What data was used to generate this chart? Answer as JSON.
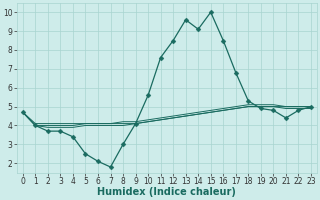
{
  "xlabel": "Humidex (Indice chaleur)",
  "x": [
    0,
    1,
    2,
    3,
    4,
    5,
    6,
    7,
    8,
    9,
    10,
    11,
    12,
    13,
    14,
    15,
    16,
    17,
    18,
    19,
    20,
    21,
    22,
    23
  ],
  "main_line": [
    4.7,
    4.0,
    3.7,
    3.7,
    3.4,
    2.5,
    2.1,
    1.8,
    3.0,
    4.1,
    5.6,
    7.6,
    8.5,
    9.6,
    9.1,
    10.0,
    8.5,
    6.8,
    5.3,
    4.9,
    4.8,
    4.4,
    4.8,
    5.0
  ],
  "line2": [
    4.7,
    4.0,
    4.0,
    4.0,
    4.0,
    4.1,
    4.1,
    4.1,
    4.1,
    4.1,
    4.2,
    4.3,
    4.4,
    4.5,
    4.6,
    4.7,
    4.8,
    4.9,
    5.0,
    5.0,
    5.0,
    5.0,
    5.0,
    5.0
  ],
  "line3": [
    4.7,
    4.1,
    4.1,
    4.1,
    4.1,
    4.1,
    4.1,
    4.1,
    4.2,
    4.2,
    4.3,
    4.4,
    4.5,
    4.6,
    4.7,
    4.8,
    4.9,
    5.0,
    5.1,
    5.1,
    5.1,
    5.0,
    5.0,
    5.0
  ],
  "line4": [
    4.7,
    4.0,
    3.9,
    3.9,
    3.9,
    4.0,
    4.0,
    4.0,
    4.0,
    4.1,
    4.2,
    4.3,
    4.4,
    4.5,
    4.6,
    4.7,
    4.8,
    4.9,
    5.0,
    5.0,
    5.0,
    4.9,
    4.9,
    4.9
  ],
  "ylim": [
    1.5,
    10.5
  ],
  "xlim": [
    -0.5,
    23.5
  ],
  "bg_color": "#ceecea",
  "grid_color": "#a8d4d0",
  "line_color": "#1a6b60",
  "marker": "D",
  "marker_size": 2.5,
  "yticks": [
    2,
    3,
    4,
    5,
    6,
    7,
    8,
    9,
    10
  ],
  "xtick_labels": [
    "0",
    "1",
    "2",
    "3",
    "4",
    "5",
    "6",
    "7",
    "8",
    "9",
    "10",
    "11",
    "12",
    "13",
    "14",
    "  ",
    "16",
    "17",
    "18",
    "19",
    "20",
    "21",
    "22",
    "23"
  ],
  "xlabel_fontsize": 7,
  "tick_fontsize": 5.5
}
